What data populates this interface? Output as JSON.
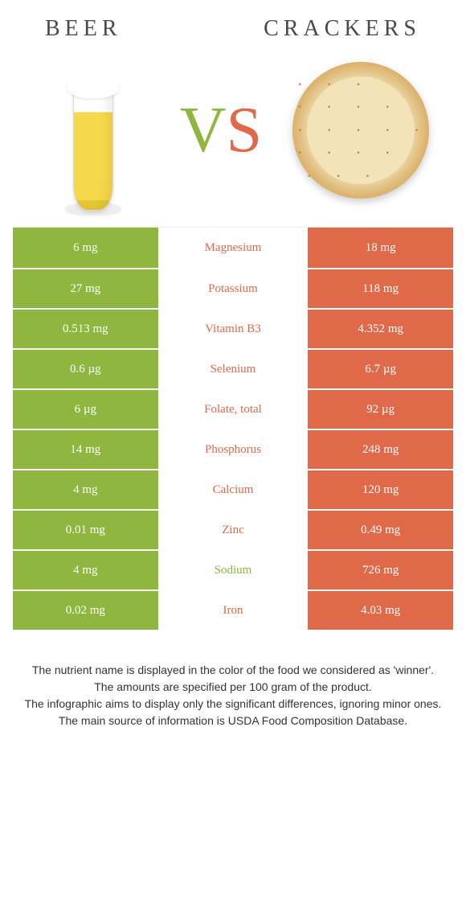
{
  "colors": {
    "left": "#8fb63f",
    "right": "#e0694a",
    "label_default": "#333"
  },
  "header": {
    "left_title": "Beer",
    "right_title": "Crackers",
    "vs_v_color": "#8fb63f",
    "vs_s_color": "#e0694a"
  },
  "rows": [
    {
      "name": "Magnesium",
      "left": "6 mg",
      "right": "18 mg",
      "winner": "right"
    },
    {
      "name": "Potassium",
      "left": "27 mg",
      "right": "118 mg",
      "winner": "right"
    },
    {
      "name": "Vitamin B3",
      "left": "0.513 mg",
      "right": "4.352 mg",
      "winner": "right"
    },
    {
      "name": "Selenium",
      "left": "0.6 µg",
      "right": "6.7 µg",
      "winner": "right"
    },
    {
      "name": "Folate, total",
      "left": "6 µg",
      "right": "92 µg",
      "winner": "right"
    },
    {
      "name": "Phosphorus",
      "left": "14 mg",
      "right": "248 mg",
      "winner": "right"
    },
    {
      "name": "Calcium",
      "left": "4 mg",
      "right": "120 mg",
      "winner": "right"
    },
    {
      "name": "Zinc",
      "left": "0.01 mg",
      "right": "0.49 mg",
      "winner": "right"
    },
    {
      "name": "Sodium",
      "left": "4 mg",
      "right": "726 mg",
      "winner": "left"
    },
    {
      "name": "Iron",
      "left": "0.02 mg",
      "right": "4.03 mg",
      "winner": "right"
    }
  ],
  "footer": [
    "The nutrient name is displayed in the color of the food we considered as 'winner'.",
    "The amounts are specified per 100 gram of the product.",
    "The infographic aims to display only the significant differences, ignoring minor ones.",
    "The main source of information is USDA Food Composition Database."
  ]
}
